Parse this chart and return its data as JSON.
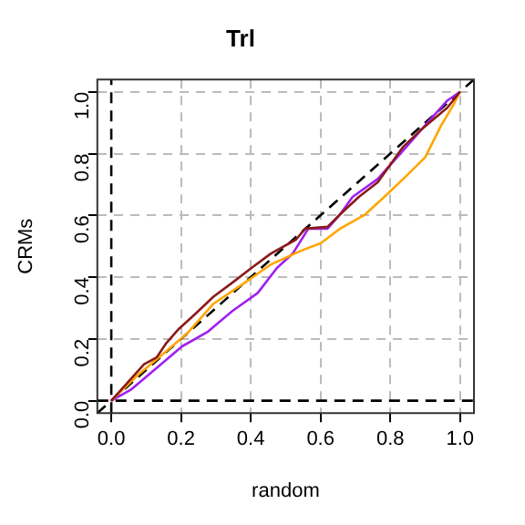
{
  "chart_data": {
    "type": "line",
    "title": "Trl",
    "xlabel": "random",
    "ylabel": "CRMs",
    "xlim": [
      -0.04,
      1.04
    ],
    "ylim": [
      -0.04,
      1.04
    ],
    "xticks": [
      {
        "value": 0,
        "label": "0.0"
      },
      0.2,
      0.4,
      0.6,
      0.8,
      {
        "value": 1,
        "label": "1.0"
      }
    ],
    "yticks": [
      {
        "value": 0,
        "label": "0.0"
      },
      0.2,
      0.4,
      0.6,
      0.8,
      {
        "value": 1,
        "label": "1.0"
      }
    ],
    "grid": true,
    "legend": false,
    "marker": "none",
    "series": [
      {
        "color": "#8b1a1a",
        "x": [
          0,
          0.04,
          0.094,
          0.13,
          0.158,
          0.194,
          0.24,
          0.293,
          0.348,
          0.402,
          0.457,
          0.53,
          0.556,
          0.62,
          0.656,
          0.71,
          0.764,
          0.837,
          0.891,
          0.964,
          1
        ],
        "values": [
          0,
          0.05,
          0.118,
          0.14,
          0.187,
          0.233,
          0.28,
          0.337,
          0.383,
          0.43,
          0.476,
          0.522,
          0.557,
          0.563,
          0.603,
          0.66,
          0.707,
          0.822,
          0.88,
          0.949,
          1
        ]
      },
      {
        "color": "#ffa500",
        "x": [
          0,
          0.076,
          0.149,
          0.221,
          0.293,
          0.384,
          0.457,
          0.547,
          0.601,
          0.656,
          0.728,
          0.783,
          0.837,
          0.9,
          0.946,
          0.982,
          1
        ],
        "values": [
          0,
          0.083,
          0.152,
          0.222,
          0.314,
          0.383,
          0.441,
          0.487,
          0.51,
          0.557,
          0.603,
          0.66,
          0.718,
          0.788,
          0.891,
          0.96,
          1
        ]
      },
      {
        "color": "#a020f0",
        "x": [
          0,
          0.058,
          0.13,
          0.203,
          0.275,
          0.348,
          0.42,
          0.475,
          0.52,
          0.565,
          0.62,
          0.656,
          0.692,
          0.764,
          0.837,
          0.909,
          0.964,
          1
        ],
        "values": [
          0,
          0.037,
          0.106,
          0.176,
          0.222,
          0.291,
          0.349,
          0.43,
          0.476,
          0.557,
          0.557,
          0.603,
          0.66,
          0.718,
          0.81,
          0.903,
          0.972,
          1
        ]
      },
      {
        "color": "#000000",
        "line_style": "dashed",
        "x": [
          -0.04,
          1.04
        ],
        "values": [
          -0.04,
          1.04
        ]
      },
      {
        "color": "#000000",
        "line_style": "dashed",
        "x": [
          0,
          0
        ],
        "values": [
          -0.04,
          1.04
        ]
      },
      {
        "color": "#000000",
        "line_style": "dashed",
        "x": [
          -0.04,
          1.04
        ],
        "values": [
          0,
          0
        ]
      }
    ]
  }
}
